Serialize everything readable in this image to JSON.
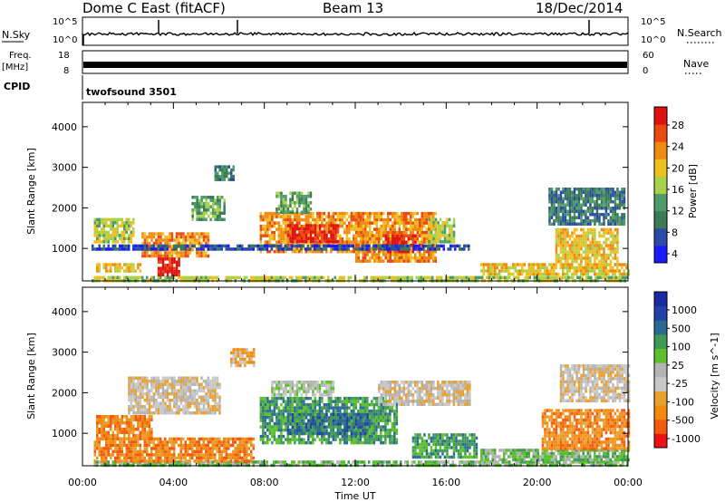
{
  "header": {
    "station": "Dome C East (fitACF)",
    "beam": "Beam 13",
    "date": "18/Dec/2014"
  },
  "top_panels": {
    "nsky": {
      "label": "N.Sky",
      "ticks": [
        "10^5",
        "10^0"
      ]
    },
    "nsearch": {
      "label": "N.Search",
      "ticks": [
        "10^5",
        "10^0"
      ]
    },
    "freq": {
      "label_line1": "Freq.",
      "label_line2": "[MHz]",
      "ticks": [
        "18",
        "8"
      ]
    },
    "nave": {
      "label": "Nave",
      "ticks": [
        "60",
        "0"
      ]
    },
    "cpid": {
      "label": "CPID",
      "program": "twofsound  3501"
    }
  },
  "colors": {
    "power": [
      "#1a1aff",
      "#2b4aa8",
      "#3a7a55",
      "#4d9a6a",
      "#a8d24a",
      "#f0c020",
      "#f08a10",
      "#e84a10",
      "#e01010"
    ],
    "velocity": [
      "#ee1111",
      "#f25a10",
      "#f28a10",
      "#e8a030",
      "#c8c8c8",
      "#b4b4b4",
      "#5cc02c",
      "#3f9a55",
      "#2b6a92",
      "#2342a8",
      "#1a2aa0"
    ]
  },
  "chart_data": [
    {
      "type": "heatmap",
      "name": "power",
      "ylabel": "Slant Range [km]",
      "yticks": [
        1000,
        2000,
        3000,
        4000
      ],
      "ylim": [
        200,
        4600
      ],
      "xlim": [
        0,
        24
      ],
      "colorbar": {
        "label": "Power [dB]",
        "ticks": [
          "28",
          "24",
          "20",
          "16",
          "12",
          "8",
          "4"
        ]
      },
      "regions": [
        {
          "t": [
            0.4,
            24
          ],
          "r": [
            200,
            320
          ],
          "level": 4
        },
        {
          "t": [
            0.6,
            2.5
          ],
          "r": [
            480,
            640
          ],
          "level": 5
        },
        {
          "t": [
            3.3,
            4.2
          ],
          "r": [
            320,
            780
          ],
          "level": 8
        },
        {
          "t": [
            2.6,
            5.5
          ],
          "r": [
            820,
            1400
          ],
          "level": 6
        },
        {
          "t": [
            0.5,
            2.2
          ],
          "r": [
            1180,
            1750
          ],
          "level": 4
        },
        {
          "t": [
            4.8,
            6.2
          ],
          "r": [
            1750,
            2300
          ],
          "level": 3
        },
        {
          "t": [
            7.8,
            12.3
          ],
          "r": [
            900,
            1900
          ],
          "level": 6
        },
        {
          "t": [
            9.0,
            11.2
          ],
          "r": [
            1150,
            1600
          ],
          "level": 8
        },
        {
          "t": [
            12.0,
            15.5
          ],
          "r": [
            700,
            1900
          ],
          "level": 6
        },
        {
          "t": [
            13.3,
            14.6
          ],
          "r": [
            900,
            1350
          ],
          "level": 8
        },
        {
          "t": [
            15.2,
            16.3
          ],
          "r": [
            1150,
            1750
          ],
          "level": 4
        },
        {
          "t": [
            17.5,
            24
          ],
          "r": [
            330,
            640
          ],
          "level": 5
        },
        {
          "t": [
            20.8,
            23.5
          ],
          "r": [
            650,
            1500
          ],
          "level": 5
        },
        {
          "t": [
            20.5,
            23.8
          ],
          "r": [
            1600,
            2500
          ],
          "level": 2
        },
        {
          "t": [
            5.8,
            6.6
          ],
          "r": [
            2700,
            3050
          ],
          "level": 2
        },
        {
          "t": [
            8.5,
            10.0
          ],
          "r": [
            1900,
            2400
          ],
          "level": 3
        },
        {
          "t": [
            0.4,
            17.0
          ],
          "r": [
            950,
            1100
          ],
          "level": 1
        }
      ]
    },
    {
      "type": "heatmap",
      "name": "velocity",
      "ylabel": "Slant Range [km]",
      "xlabel": "Time UT",
      "xticks": [
        "00:00",
        "04:00",
        "08:00",
        "12:00",
        "16:00",
        "20:00",
        "00:00"
      ],
      "yticks": [
        1000,
        2000,
        3000,
        4000
      ],
      "ylim": [
        200,
        4600
      ],
      "xlim": [
        0,
        24
      ],
      "colorbar": {
        "label": "Velocity [m s^-1]",
        "ticks": [
          "1000",
          "500",
          "100",
          "25",
          "-25",
          "-100",
          "-500",
          "-1000"
        ]
      },
      "regions": [
        {
          "t": [
            0.4,
            24
          ],
          "r": [
            200,
            330
          ],
          "level": 6
        },
        {
          "t": [
            0.5,
            7.5
          ],
          "r": [
            350,
            900
          ],
          "level": 2
        },
        {
          "t": [
            0.6,
            3.0
          ],
          "r": [
            900,
            1450
          ],
          "level": 2
        },
        {
          "t": [
            2.0,
            6.0
          ],
          "r": [
            1500,
            2400
          ],
          "level": 4
        },
        {
          "t": [
            7.8,
            13.8
          ],
          "r": [
            800,
            1900
          ],
          "level": 7
        },
        {
          "t": [
            9.0,
            12.5
          ],
          "r": [
            1000,
            1500
          ],
          "level": 8
        },
        {
          "t": [
            13.0,
            17.0
          ],
          "r": [
            1700,
            2300
          ],
          "level": 4
        },
        {
          "t": [
            14.5,
            17.3
          ],
          "r": [
            380,
            1000
          ],
          "level": 7
        },
        {
          "t": [
            17.5,
            24
          ],
          "r": [
            340,
            620
          ],
          "level": 6
        },
        {
          "t": [
            20.2,
            24
          ],
          "r": [
            650,
            1600
          ],
          "level": 2
        },
        {
          "t": [
            21.0,
            24
          ],
          "r": [
            1800,
            2700
          ],
          "level": 4
        },
        {
          "t": [
            8.3,
            11.0
          ],
          "r": [
            1950,
            2300
          ],
          "level": 5
        },
        {
          "t": [
            6.5,
            7.5
          ],
          "r": [
            2700,
            3100
          ],
          "level": 3
        }
      ]
    }
  ]
}
